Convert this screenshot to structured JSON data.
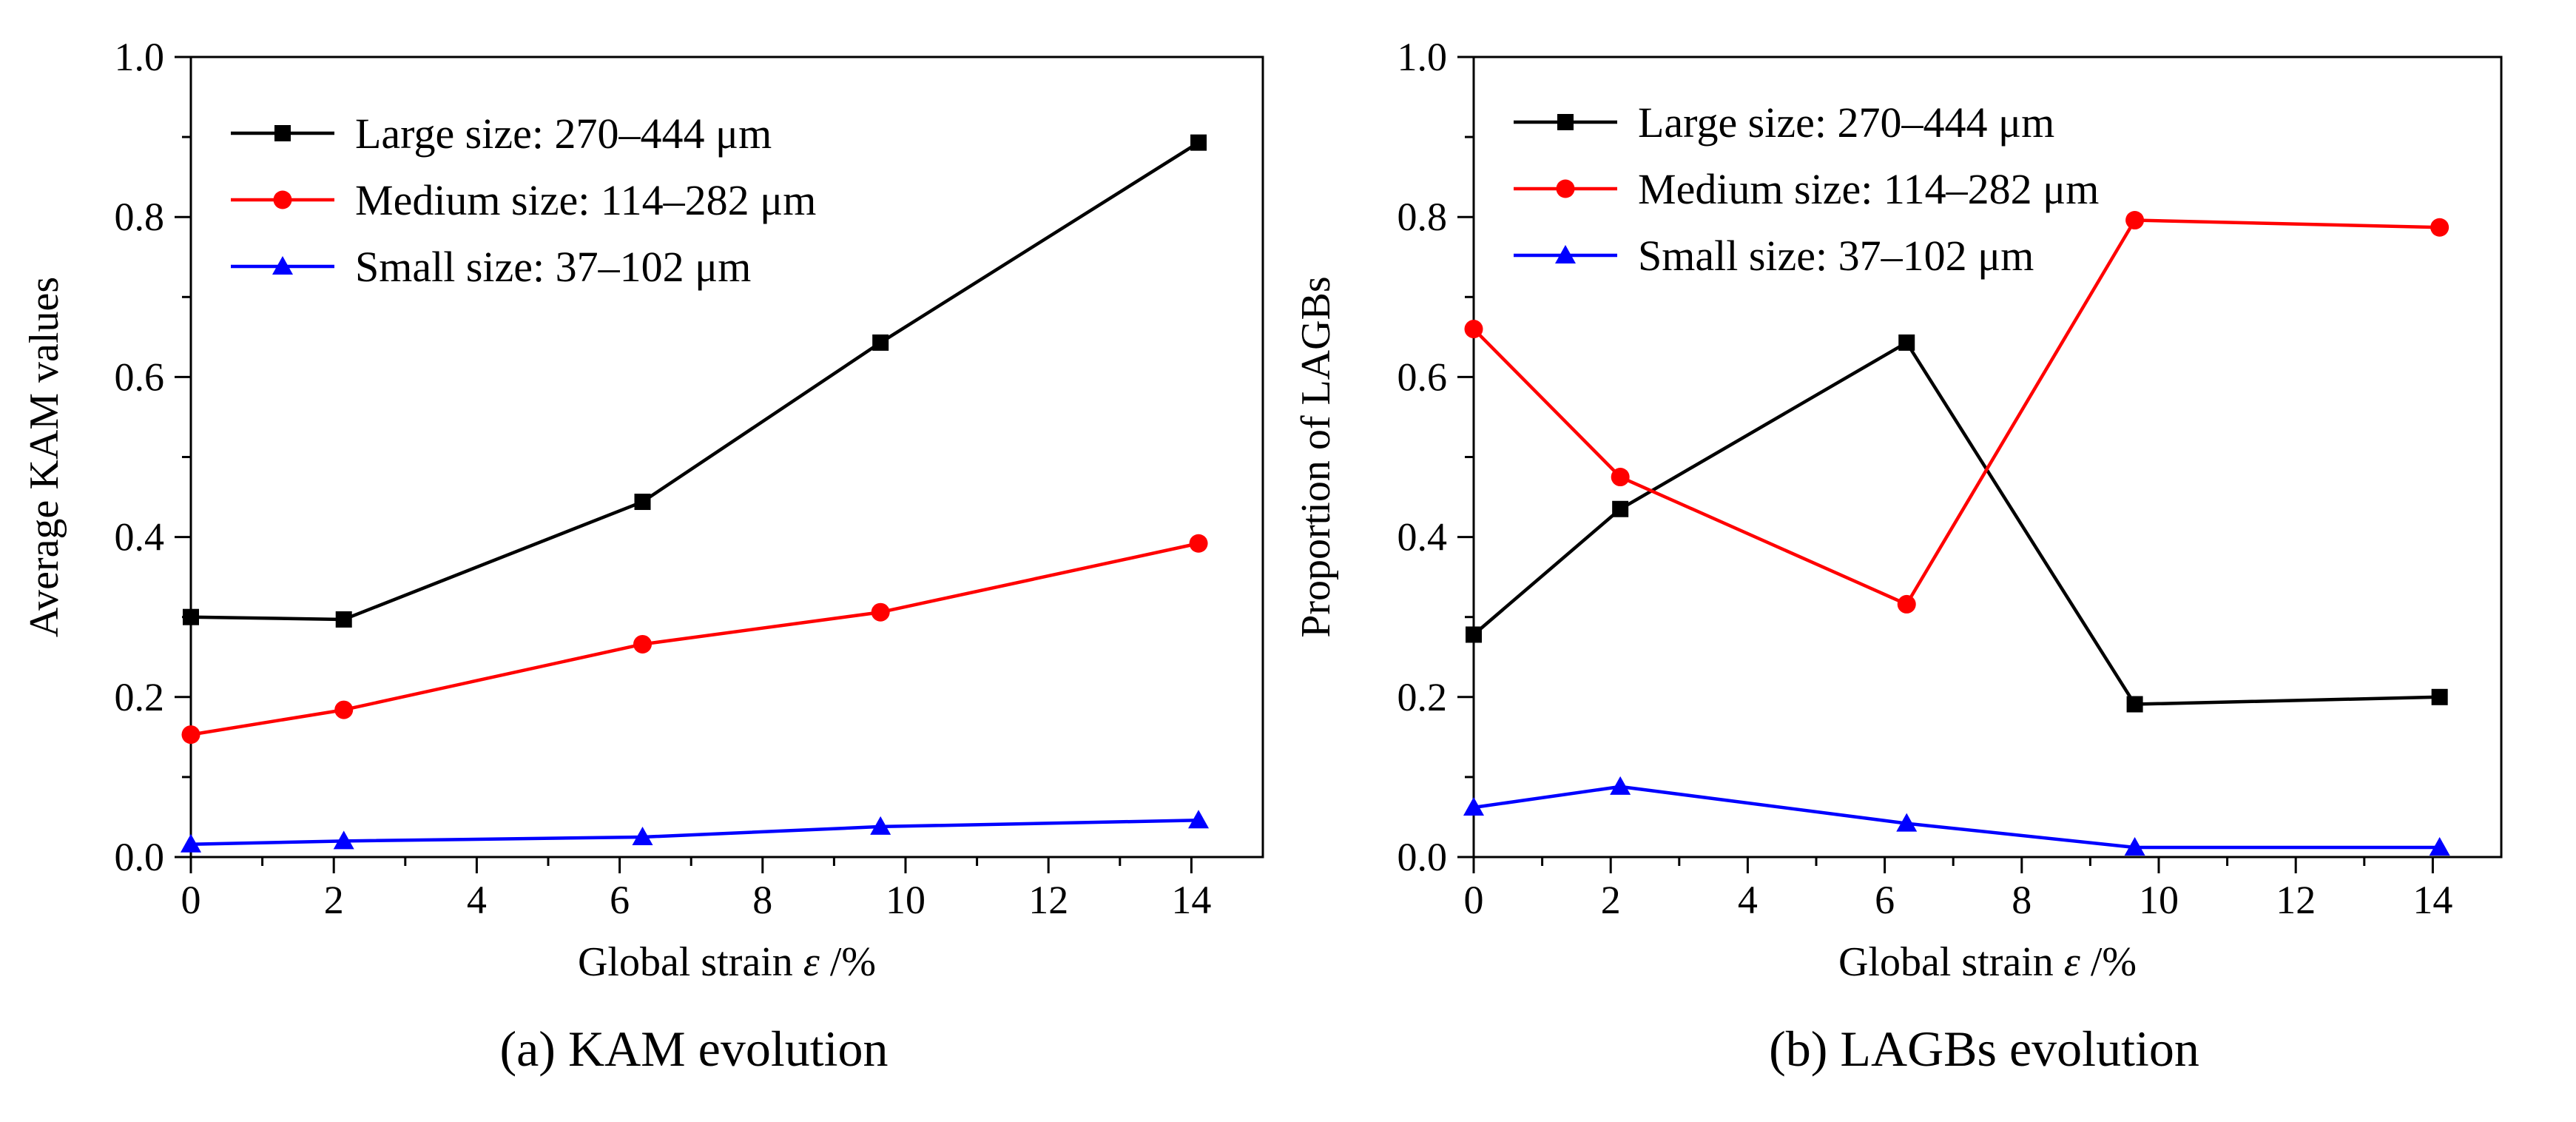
{
  "colors": {
    "large": "#000000",
    "medium": "#ff0000",
    "small": "#0000ff"
  },
  "chart_data": [
    {
      "type": "line",
      "caption": "(a) KAM evolution",
      "xlabel": "Global strain ",
      "xlabel_symbol": "ε",
      "xlabel_unit": " /%",
      "ylabel": "Average KAM values",
      "xlim": [
        0,
        15
      ],
      "ylim": [
        0,
        1.0
      ],
      "xticks": [
        0,
        2,
        4,
        6,
        8,
        10,
        12,
        14
      ],
      "xtick_labels": [
        "0",
        "2",
        "4",
        "6",
        "8",
        "10",
        "12",
        "14"
      ],
      "yticks": [
        0,
        0.2,
        0.4,
        0.6,
        0.8,
        1.0
      ],
      "ytick_labels": [
        "0.0",
        "0.2",
        "0.4",
        "0.6",
        "0.8",
        "1.0"
      ],
      "legend_position": "top-left",
      "x": [
        0,
        2.14,
        6.32,
        9.65,
        14.1
      ],
      "series": [
        {
          "name": "Large size: 270–444 μm",
          "color": "#000000",
          "marker": "square",
          "values": [
            0.3,
            0.297,
            0.444,
            0.643,
            0.893
          ]
        },
        {
          "name": "Medium size: 114–282 μm",
          "color": "#ff0000",
          "marker": "circle",
          "values": [
            0.153,
            0.184,
            0.266,
            0.306,
            0.392
          ]
        },
        {
          "name": "Small size: 37–102 μm",
          "color": "#0000ff",
          "marker": "triangle",
          "values": [
            0.016,
            0.02,
            0.025,
            0.038,
            0.046
          ]
        }
      ]
    },
    {
      "type": "line",
      "caption": "(b) LAGBs evolution",
      "xlabel": "Global strain ",
      "xlabel_symbol": "ε",
      "xlabel_unit": " /%",
      "ylabel": "Proportion of LAGBs",
      "xlim": [
        0,
        15
      ],
      "ylim": [
        0,
        1.0
      ],
      "xticks": [
        0,
        2,
        4,
        6,
        8,
        10,
        12,
        14
      ],
      "xtick_labels": [
        "0",
        "2",
        "4",
        "6",
        "8",
        "10",
        "12",
        "14"
      ],
      "yticks": [
        0,
        0.2,
        0.4,
        0.6,
        0.8,
        1.0
      ],
      "ytick_labels": [
        "0.0",
        "0.2",
        "0.4",
        "0.6",
        "0.8",
        "1.0"
      ],
      "legend_position": "top-left",
      "x": [
        0,
        2.14,
        6.32,
        9.65,
        14.1
      ],
      "series": [
        {
          "name": "Large size: 270–444 μm",
          "color": "#000000",
          "marker": "square",
          "values": [
            0.278,
            0.435,
            0.643,
            0.191,
            0.2
          ]
        },
        {
          "name": "Medium size: 114–282 μm",
          "color": "#ff0000",
          "marker": "circle",
          "values": [
            0.66,
            0.475,
            0.316,
            0.796,
            0.787
          ]
        },
        {
          "name": "Small size: 37–102 μm",
          "color": "#0000ff",
          "marker": "triangle",
          "values": [
            0.062,
            0.088,
            0.042,
            0.012,
            0.012
          ]
        }
      ]
    }
  ]
}
